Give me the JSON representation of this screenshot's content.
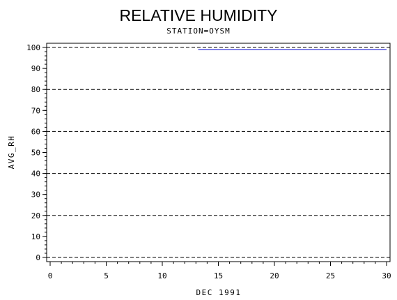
{
  "chart_data": {
    "type": "line",
    "title": "RELATIVE HUMIDITY",
    "subtitle": "STATION=OYSM",
    "xlabel": "DEC 1991",
    "ylabel": "AVG_RH",
    "xlim": [
      0,
      30
    ],
    "ylim": [
      0,
      100
    ],
    "x_ticks": [
      0,
      5,
      10,
      15,
      20,
      25,
      30
    ],
    "y_ticks": [
      0,
      10,
      20,
      30,
      40,
      50,
      60,
      70,
      80,
      90,
      100
    ],
    "grid_lines_y": [
      0,
      20,
      40,
      60,
      80,
      100
    ],
    "grid": "dashed horizontal",
    "series": [
      {
        "color": "#0000cc",
        "x": [
          13.2,
          30
        ],
        "y": [
          99,
          99
        ]
      }
    ]
  }
}
